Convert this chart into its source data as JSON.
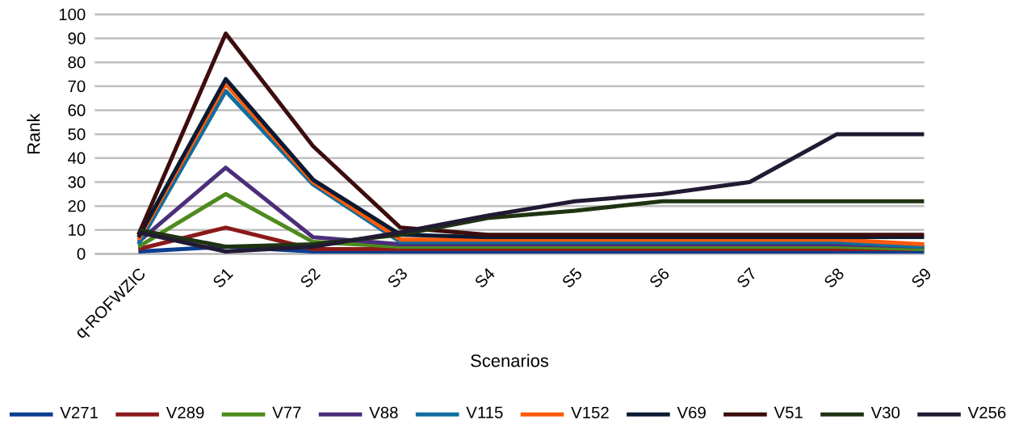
{
  "chart_data": {
    "type": "line",
    "xlabel": "Scenarios",
    "ylabel": "Rank",
    "categories": [
      "q-ROFWZIC",
      "S1",
      "S2",
      "S3",
      "S4",
      "S5",
      "S6",
      "S7",
      "S8",
      "S9"
    ],
    "ylim": [
      0,
      100
    ],
    "yticks": [
      0,
      10,
      20,
      30,
      40,
      50,
      60,
      70,
      80,
      90,
      100
    ],
    "grid": "y",
    "legend": "bottom",
    "marker": "none",
    "line_style": "solid",
    "series": [
      {
        "name": "V271",
        "color": "#0b3d91",
        "values": [
          1,
          3,
          1,
          1,
          1,
          1,
          1,
          1,
          1,
          1
        ]
      },
      {
        "name": "V289",
        "color": "#8b1a1a",
        "values": [
          2,
          11,
          2,
          2,
          2,
          2,
          2,
          2,
          2,
          2
        ]
      },
      {
        "name": "V77",
        "color": "#4e8a1e",
        "values": [
          3,
          25,
          5,
          3,
          3,
          3,
          3,
          3,
          3,
          2
        ]
      },
      {
        "name": "V88",
        "color": "#4b2e7a",
        "values": [
          5,
          36,
          7,
          4,
          4,
          4,
          4,
          4,
          4,
          3
        ]
      },
      {
        "name": "V115",
        "color": "#0e6e9e",
        "values": [
          4,
          68,
          29,
          5,
          5,
          5,
          5,
          5,
          5,
          3
        ]
      },
      {
        "name": "V152",
        "color": "#ff5a0a",
        "values": [
          6,
          71,
          30,
          6,
          6,
          6,
          6,
          6,
          6,
          4
        ]
      },
      {
        "name": "V69",
        "color": "#0a1a33",
        "values": [
          7,
          73,
          31,
          8,
          7,
          7,
          7,
          7,
          7,
          7
        ]
      },
      {
        "name": "V51",
        "color": "#3d0d0d",
        "values": [
          8,
          92,
          45,
          11,
          8,
          8,
          8,
          8,
          8,
          8
        ]
      },
      {
        "name": "V30",
        "color": "#1f3310",
        "values": [
          10,
          3,
          4,
          8,
          15,
          18,
          22,
          22,
          22,
          22
        ]
      },
      {
        "name": "V256",
        "color": "#221a33",
        "values": [
          9,
          1,
          3,
          9,
          16,
          22,
          25,
          30,
          50,
          50
        ]
      }
    ]
  }
}
